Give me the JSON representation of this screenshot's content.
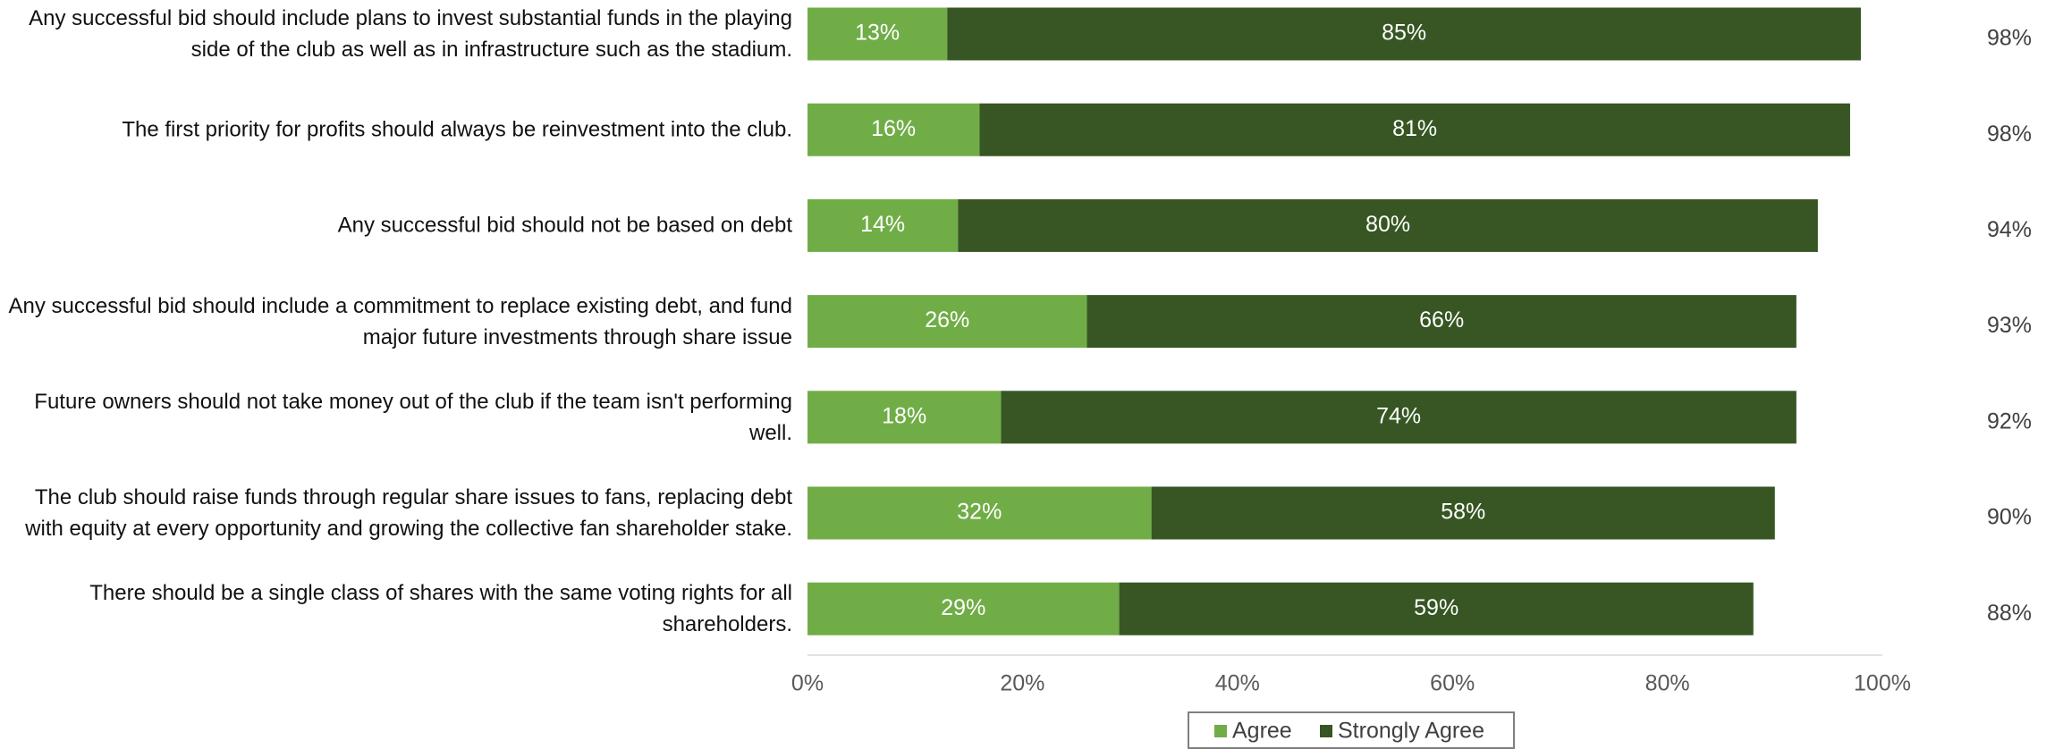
{
  "chart_data": {
    "type": "stacked-bar-horizontal",
    "categories": [
      "Any successful bid should include plans to invest substantial funds in the playing side of the club as well as in infrastructure such as the stadium.",
      "The first priority for profits should always be reinvestment into the club.",
      "Any successful bid should not be based on debt",
      "Any successful bid should include a commitment to replace existing debt, and fund major future investments through share issue",
      "Future owners should not take money out of the club if the team isn't performing well.",
      "The club should raise funds through regular share issues to fans, replacing debt with equity at every opportunity and growing the collective fan shareholder stake.",
      "There should be a single class of shares with the same voting rights for all shareholders."
    ],
    "series": [
      {
        "name": "Agree",
        "color": "#70ad47",
        "values": [
          13,
          16,
          14,
          26,
          18,
          32,
          29
        ],
        "value_labels": [
          "13%",
          "16%",
          "14%",
          "26%",
          "18%",
          "32%",
          "29%"
        ]
      },
      {
        "name": "Strongly Agree",
        "color": "#375623",
        "values": [
          85,
          81,
          80,
          66,
          74,
          58,
          59
        ],
        "value_labels": [
          "85%",
          "81%",
          "80%",
          "66%",
          "74%",
          "58%",
          "59%"
        ]
      }
    ],
    "totals": {
      "values": [
        98,
        98,
        94,
        93,
        92,
        90,
        88
      ],
      "value_labels": [
        "98%",
        "98%",
        "94%",
        "93%",
        "92%",
        "90%",
        "88%"
      ]
    },
    "xlim": [
      0,
      100
    ],
    "xticks": [
      {
        "value": 0,
        "label": "0%"
      },
      {
        "value": 20,
        "label": "20%"
      },
      {
        "value": 40,
        "label": "40%"
      },
      {
        "value": 60,
        "label": "60%"
      },
      {
        "value": 80,
        "label": "80%"
      },
      {
        "value": 100,
        "label": "100%"
      }
    ],
    "legend": "bottom"
  }
}
